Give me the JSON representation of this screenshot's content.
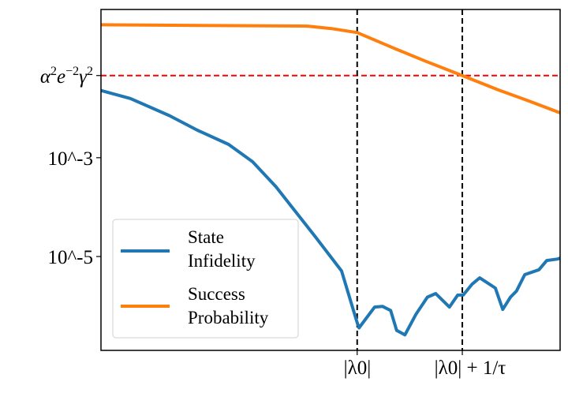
{
  "chart_data": {
    "type": "line",
    "title": "",
    "xlabel": "",
    "ylabel": "",
    "xlim": [
      0,
      1
    ],
    "ylim": [
      1.26e-07,
      1
    ],
    "yscale": "log",
    "grid": false,
    "legend_position": "lower-left",
    "x_ticks": [
      {
        "value": 0.558,
        "label": "|λ0|",
        "main": "|λ",
        "sub": "0",
        "suffix": "|"
      },
      {
        "value": 0.787,
        "label": "|λ0| + 1/τ",
        "main": "|λ",
        "sub": "0",
        "suffix": "| + 1/τ"
      }
    ],
    "y_ticks": [
      {
        "value": 0.046,
        "label": "α²e⁻²γ²",
        "parts": [
          [
            "α",
            "2"
          ],
          [
            "e",
            "−2"
          ],
          [
            "γ",
            "2"
          ]
        ]
      },
      {
        "value": 0.001,
        "label": "10^-3",
        "base": "10",
        "exp": "−3"
      },
      {
        "value": 1e-05,
        "label": "10^-5",
        "base": "10",
        "exp": "−5"
      }
    ],
    "reference_lines": [
      {
        "orientation": "horizontal",
        "value": 0.046,
        "style": "dashed",
        "color": "#ff0000"
      },
      {
        "orientation": "vertical",
        "value": 0.558,
        "style": "dashed",
        "color": "#000000"
      },
      {
        "orientation": "vertical",
        "value": 0.787,
        "style": "dashed",
        "color": "#000000"
      }
    ],
    "series": [
      {
        "name": "State Infidelity",
        "legend_lines": [
          "State",
          "Infidelity"
        ],
        "color": "#1f77b4",
        "x": [
          0,
          0.064,
          0.149,
          0.21,
          0.278,
          0.33,
          0.381,
          0.433,
          0.467,
          0.524,
          0.557,
          0.562,
          0.596,
          0.613,
          0.631,
          0.644,
          0.662,
          0.686,
          0.711,
          0.729,
          0.759,
          0.777,
          0.789,
          0.808,
          0.825,
          0.859,
          0.875,
          0.892,
          0.905,
          0.923,
          0.954,
          0.971,
          0.995,
          1.0
        ],
        "y": [
          0.0229,
          0.0158,
          0.0071,
          0.0036,
          0.00186,
          0.00083,
          0.00026,
          6.3e-05,
          2.5e-05,
          5.1e-06,
          4.9e-07,
          3.6e-07,
          9.5e-07,
          9.8e-07,
          8.1e-07,
          3.2e-07,
          2.6e-07,
          6.8e-07,
          1.51e-06,
          1.78e-06,
          9.5e-07,
          1.66e-06,
          1.66e-06,
          2.75e-06,
          3.7e-06,
          2.3e-06,
          8.5e-07,
          1.51e-06,
          2e-06,
          4.3e-06,
          5.4e-06,
          8.3e-06,
          8.9e-06,
          9.3e-06
        ]
      },
      {
        "name": "Success Probability",
        "legend_lines": [
          "Success",
          "Probability"
        ],
        "color": "#ff7f0e",
        "x": [
          0,
          0.45,
          0.502,
          0.558,
          0.639,
          0.708,
          0.787,
          0.863,
          0.931,
          1.0
        ],
        "y": [
          0.49,
          0.46,
          0.41,
          0.34,
          0.163,
          0.089,
          0.046,
          0.024,
          0.0142,
          0.0081
        ]
      }
    ]
  }
}
